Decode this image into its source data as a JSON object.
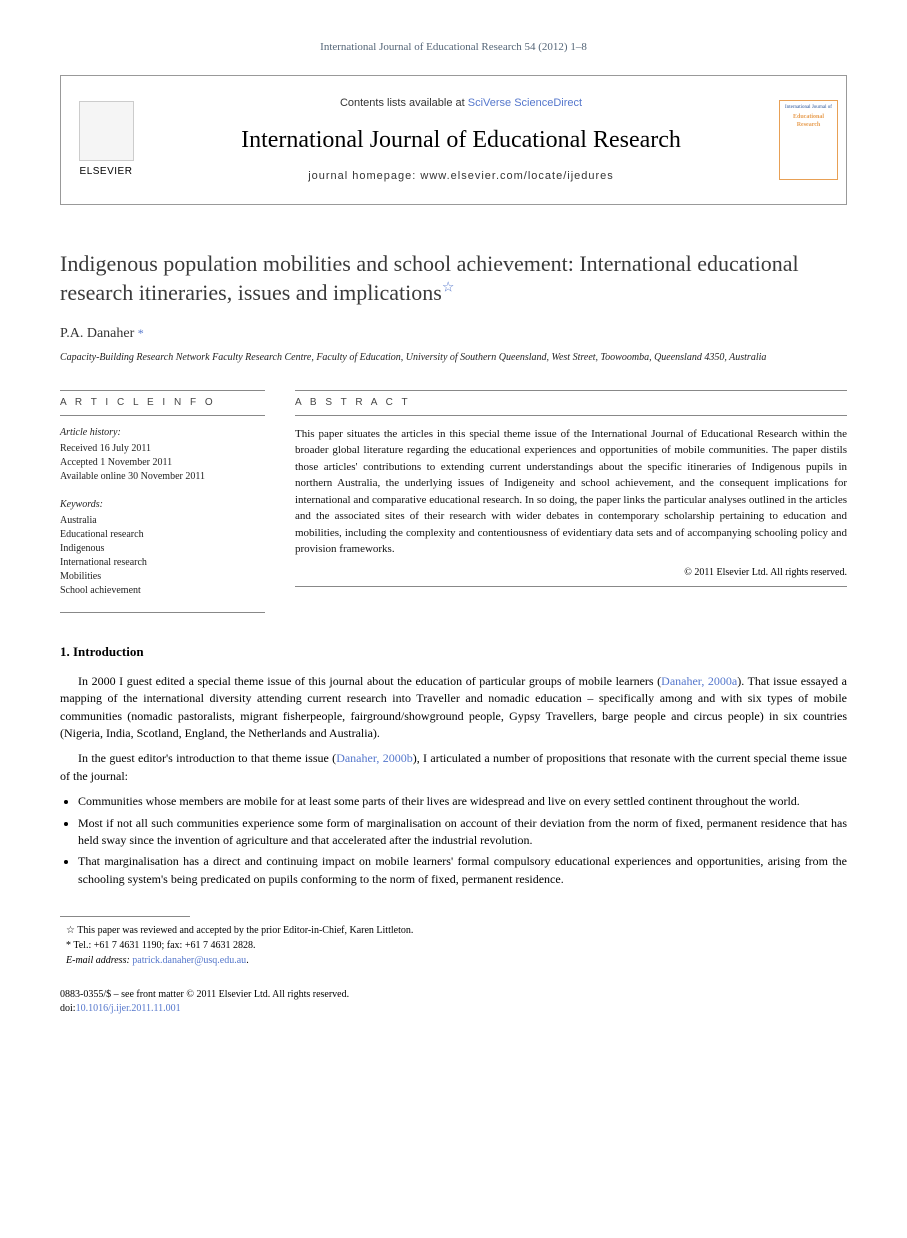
{
  "journal_ref": "International Journal of Educational Research 54 (2012) 1–8",
  "header": {
    "contents_prefix": "Contents lists available at ",
    "scidirect": "SciVerse ScienceDirect",
    "journal_title": "International Journal of Educational Research",
    "homepage_prefix": "journal homepage: ",
    "homepage_url": "www.elsevier.com/locate/ijedures",
    "elsevier_label": "ELSEVIER",
    "cover_title": "International Journal of",
    "cover_sub": "Educational Research"
  },
  "title": "Indigenous population mobilities and school achievement: International educational research itineraries, issues and implications",
  "author": "P.A. Danaher",
  "affiliation": "Capacity-Building Research Network Faculty Research Centre, Faculty of Education, University of Southern Queensland, West Street, Toowoomba, Queensland 4350, Australia",
  "article_info": {
    "header": "A R T I C L E   I N F O",
    "history_label": "Article history:",
    "received": "Received 16 July 2011",
    "accepted": "Accepted 1 November 2011",
    "online": "Available online 30 November 2011",
    "keywords_label": "Keywords:",
    "keywords": [
      "Australia",
      "Educational research",
      "Indigenous",
      "International research",
      "Mobilities",
      "School achievement"
    ]
  },
  "abstract": {
    "header": "A B S T R A C T",
    "text": "This paper situates the articles in this special theme issue of the International Journal of Educational Research within the broader global literature regarding the educational experiences and opportunities of mobile communities. The paper distils those articles' contributions to extending current understandings about the specific itineraries of Indigenous pupils in northern Australia, the underlying issues of Indigeneity and school achievement, and the consequent implications for international and comparative educational research. In so doing, the paper links the particular analyses outlined in the articles and the associated sites of their research with wider debates in contemporary scholarship pertaining to education and mobilities, including the complexity and contentiousness of evidentiary data sets and of accompanying schooling policy and provision frameworks.",
    "copyright": "© 2011 Elsevier Ltd. All rights reserved."
  },
  "section1": {
    "heading": "1. Introduction",
    "para1_pre": "In 2000 I guest edited a special theme issue of this journal about the education of particular groups of mobile learners (",
    "cite1": "Danaher, 2000a",
    "para1_post": "). That issue essayed a mapping of the international diversity attending current research into Traveller and nomadic education – specifically among and with six types of mobile communities (nomadic pastoralists, migrant fisherpeople, fairground/showground people, Gypsy Travellers, barge people and circus people) in six countries (Nigeria, India, Scotland, England, the Netherlands and Australia).",
    "para2_pre": "In the guest editor's introduction to that theme issue (",
    "cite2": "Danaher, 2000b",
    "para2_post": "), I articulated a number of propositions that resonate with the current special theme issue of the journal:",
    "bullets": [
      "Communities whose members are mobile for at least some parts of their lives are widespread and live on every settled continent throughout the world.",
      "Most if not all such communities experience some form of marginalisation on account of their deviation from the norm of fixed, permanent residence that has held sway since the invention of agriculture and that accelerated after the industrial revolution.",
      "That marginalisation has a direct and continuing impact on mobile learners' formal compulsory educational experiences and opportunities, arising from the schooling system's being predicated on pupils conforming to the norm of fixed, permanent residence."
    ]
  },
  "footnotes": {
    "note1": "This paper was reviewed and accepted by the prior Editor-in-Chief, Karen Littleton.",
    "tel": "Tel.: +61 7 4631 1190; fax: +61 7 4631 2828.",
    "email_label": "E-mail address: ",
    "email": "patrick.danaher@usq.edu.au",
    "email_suffix": "."
  },
  "pubinfo": {
    "line1": "0883-0355/$ – see front matter © 2011 Elsevier Ltd. All rights reserved.",
    "doi_prefix": "doi:",
    "doi": "10.1016/j.ijer.2011.11.001"
  }
}
